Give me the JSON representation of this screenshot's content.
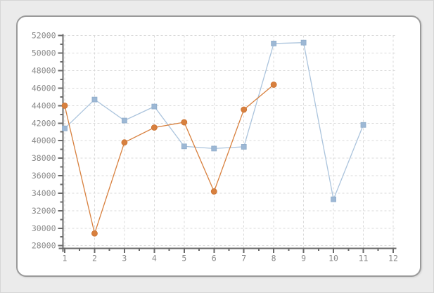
{
  "window": {
    "background_color": "#ebebeb"
  },
  "panel": {
    "background_color": "#ffffff",
    "border_color": "#9a9a9a"
  },
  "chart_data": {
    "type": "line",
    "title": "",
    "xlabel": "",
    "ylabel": "",
    "legend_visible": false,
    "grid": true,
    "grid_color": "#d9d9d9",
    "axis_color": "#6b6b6b",
    "tick_label_color": "#8a8a8a",
    "xlim": [
      1,
      12
    ],
    "ylim": [
      28000,
      52000
    ],
    "x_major_ticks": [
      1,
      2,
      3,
      4,
      5,
      6,
      7,
      8,
      9,
      10,
      11,
      12
    ],
    "x_minor_tick_step": 0.5,
    "y_major_ticks": [
      28000,
      30000,
      32000,
      34000,
      36000,
      38000,
      40000,
      42000,
      44000,
      46000,
      48000,
      50000,
      52000
    ],
    "y_minor_tick_step": 1000,
    "series": [
      {
        "name": "blue-square-series",
        "marker": "square",
        "marker_color": "#9db8d5",
        "marker_edge_color": "#8eabc9",
        "line_color": "#abc4dd",
        "points": [
          [
            1,
            41400
          ],
          [
            2,
            44700
          ],
          [
            3,
            42300
          ],
          [
            4,
            43900
          ],
          [
            5,
            39350
          ],
          [
            6,
            39100
          ],
          [
            7,
            39300
          ],
          [
            8,
            51100
          ],
          [
            9,
            51200
          ],
          [
            10,
            33300
          ],
          [
            11,
            41800
          ]
        ]
      },
      {
        "name": "orange-circle-series",
        "marker": "circle",
        "marker_color": "#d8803e",
        "marker_edge_color": "#c9702f",
        "line_color": "#d8803e",
        "points": [
          [
            1,
            44000
          ],
          [
            2,
            29400
          ],
          [
            3,
            39800
          ],
          [
            4,
            41500
          ],
          [
            5,
            42100
          ],
          [
            6,
            34200
          ],
          [
            7,
            43550
          ],
          [
            8,
            46400
          ]
        ]
      }
    ]
  }
}
